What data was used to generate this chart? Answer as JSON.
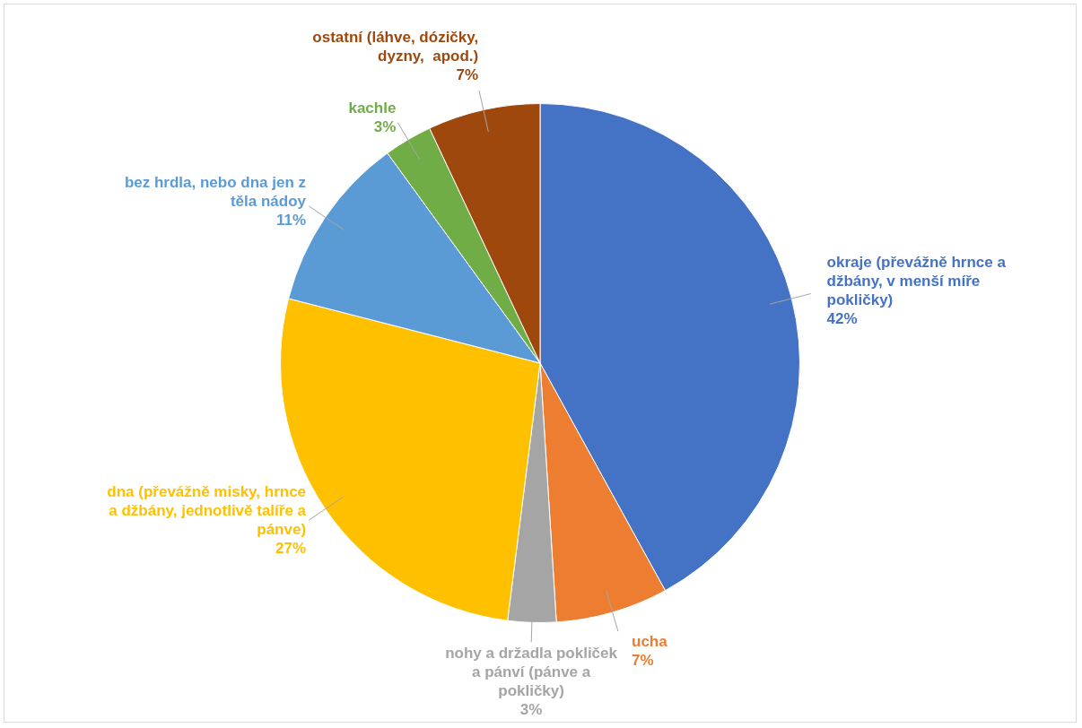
{
  "chart_data": {
    "type": "pie",
    "categories": [
      "okraje (převážně hrnce a džbány, v menší míře pokličky)",
      "ucha",
      "nohy a držadla pokliček a pánví (pánve a pokličky)",
      "dna (převážně misky, hrnce a džbány, jednotlivě talíře a pánve)",
      "bez hrdla, nebo dna jen z těla nádoy",
      "kachle",
      "ostatní (láhve, dózičky, dyzny,  apod.)"
    ],
    "values": [
      42,
      7,
      3,
      27,
      11,
      3,
      7
    ],
    "value_labels": [
      "42%",
      "7%",
      "3%",
      "27%",
      "11%",
      "3%",
      "7%"
    ],
    "colors": [
      "#4472c4",
      "#ed7d31",
      "#a5a5a5",
      "#ffc000",
      "#5b9bd5",
      "#70ad47",
      "#9e480e"
    ],
    "legend": false
  }
}
